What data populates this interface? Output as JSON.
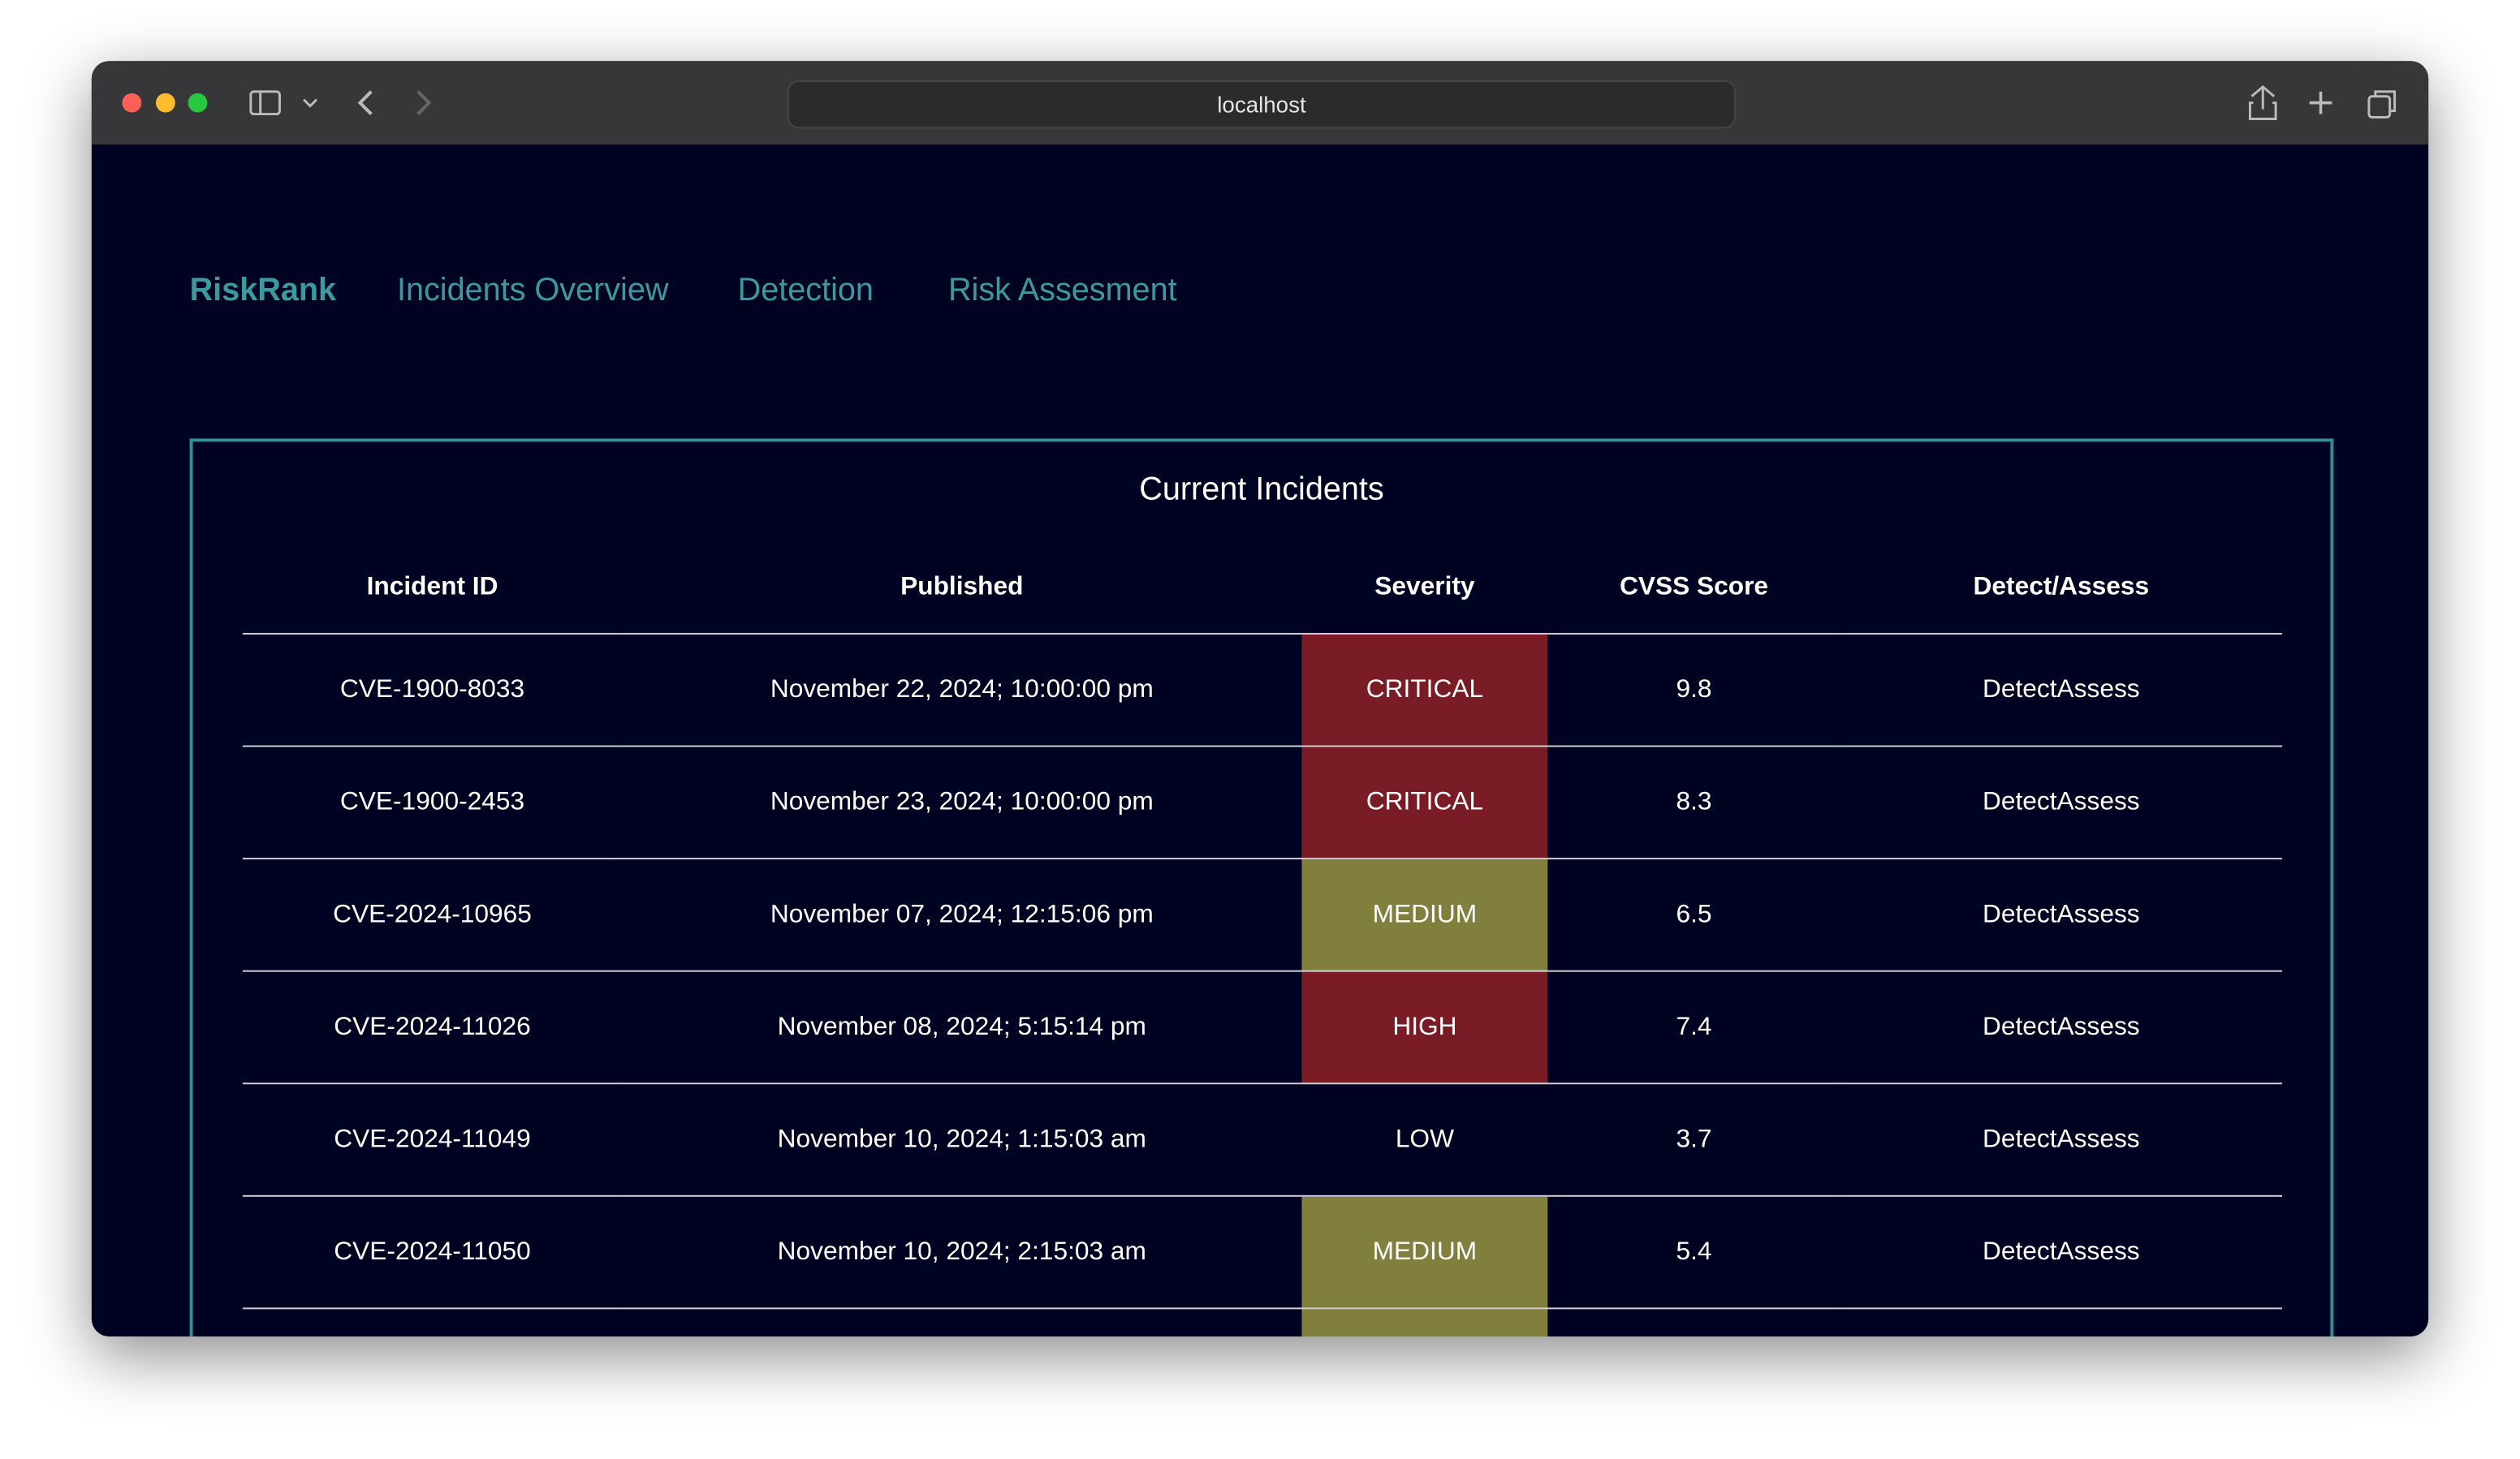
{
  "browser": {
    "url": "localhost"
  },
  "nav": {
    "brand": "RiskRank",
    "links": [
      "Incidents Overview",
      "Detection",
      "Risk Assesment"
    ]
  },
  "table": {
    "title": "Current Incidents",
    "headers": [
      "Incident ID",
      "Published",
      "Severity",
      "CVSS Score",
      "Detect/Assess"
    ],
    "buttons": [
      "Detect",
      "Assess"
    ],
    "severity_colors": {
      "CRITICAL": "#7a1c26",
      "HIGH": "#7a1c26",
      "MEDIUM": "#807f3e"
    },
    "rows": [
      [
        "CVE-1900-8033",
        "November 22, 2024; 10:00:00 pm",
        "CRITICAL",
        "9.8"
      ],
      [
        "CVE-1900-2453",
        "November 23, 2024; 10:00:00 pm",
        "CRITICAL",
        "8.3"
      ],
      [
        "CVE-2024-10965",
        "November 07, 2024; 12:15:06 pm",
        "MEDIUM",
        "6.5"
      ],
      [
        "CVE-2024-11026",
        "November 08, 2024; 5:15:14 pm",
        "HIGH",
        "7.4"
      ],
      [
        "CVE-2024-11049",
        "November 10, 2024; 1:15:03 am",
        "LOW",
        "3.7"
      ],
      [
        "CVE-2024-11050",
        "November 10, 2024; 2:15:03 am",
        "MEDIUM",
        "5.4"
      ]
    ]
  }
}
